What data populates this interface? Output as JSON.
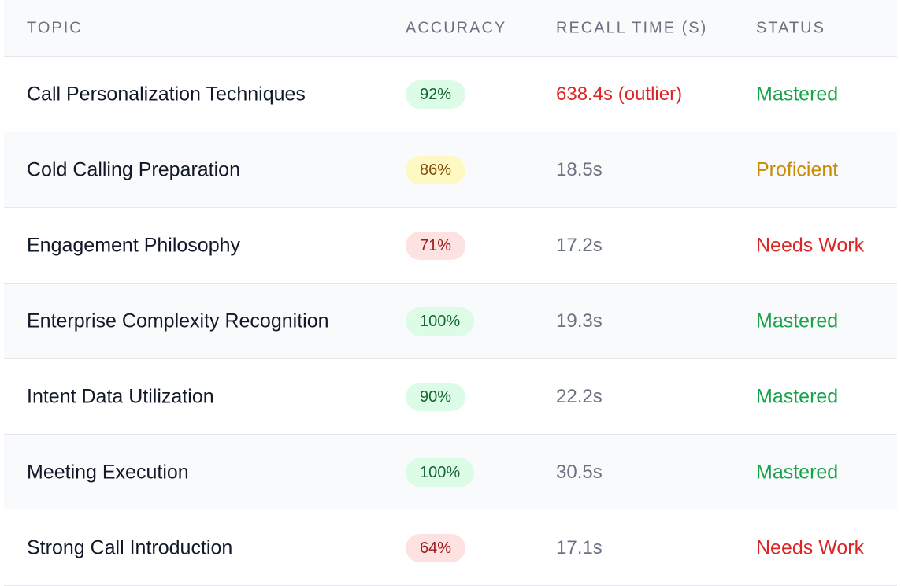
{
  "headers": {
    "topic": "TOPIC",
    "accuracy": "ACCURACY",
    "recall": "RECALL TIME (S)",
    "status": "STATUS"
  },
  "rows": [
    {
      "topic": "Call Personalization Techniques",
      "accuracy": "92%",
      "recall": "638.4s (outlier)",
      "status": "Mastered"
    },
    {
      "topic": "Cold Calling Preparation",
      "accuracy": "86%",
      "recall": "18.5s",
      "status": "Proficient"
    },
    {
      "topic": "Engagement Philosophy",
      "accuracy": "71%",
      "recall": "17.2s",
      "status": "Needs Work"
    },
    {
      "topic": "Enterprise Complexity Recognition",
      "accuracy": "100%",
      "recall": "19.3s",
      "status": "Mastered"
    },
    {
      "topic": "Intent Data Utilization",
      "accuracy": "90%",
      "recall": "22.2s",
      "status": "Mastered"
    },
    {
      "topic": "Meeting Execution",
      "accuracy": "100%",
      "recall": "30.5s",
      "status": "Mastered"
    },
    {
      "topic": "Strong Call Introduction",
      "accuracy": "64%",
      "recall": "17.1s",
      "status": "Needs Work"
    }
  ],
  "colors": {
    "mastered": "#16a34a",
    "proficient": "#ca8a04",
    "needs_work": "#dc2626",
    "outlier": "#dc2626"
  }
}
